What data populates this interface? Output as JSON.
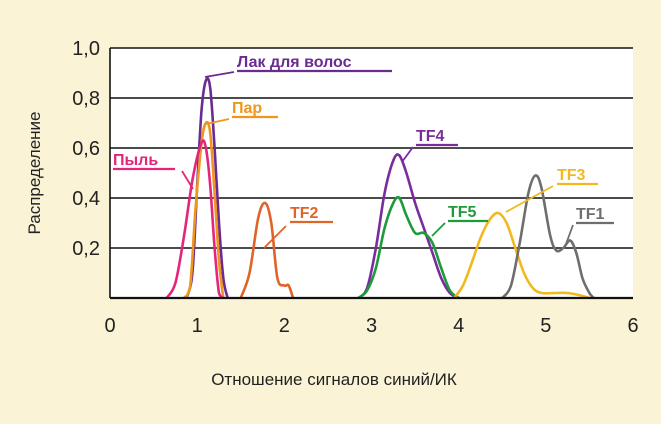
{
  "background_color": "#fbf3d6",
  "chart_data": {
    "type": "line",
    "title": "",
    "xlabel": "Отношение сигналов синий/ИК",
    "ylabel": "Распределение",
    "xlim": [
      0,
      6
    ],
    "ylim": [
      0,
      1.0
    ],
    "x_ticks": [
      "0",
      "1",
      "2",
      "3",
      "4",
      "5",
      "6"
    ],
    "y_ticks": [
      "0,2",
      "0,4",
      "0,6",
      "0,8",
      "1,0"
    ],
    "grid": "horizontal",
    "legend": "inline labels",
    "series": [
      {
        "name": "Лак для волос",
        "color": "#6a2c91",
        "points": [
          [
            0.85,
            0
          ],
          [
            0.9,
            0.02
          ],
          [
            0.95,
            0.12
          ],
          [
            1.0,
            0.45
          ],
          [
            1.05,
            0.75
          ],
          [
            1.1,
            0.87
          ],
          [
            1.15,
            0.84
          ],
          [
            1.2,
            0.6
          ],
          [
            1.25,
            0.3
          ],
          [
            1.3,
            0.08
          ],
          [
            1.35,
            0
          ]
        ]
      },
      {
        "name": "Пар",
        "color": "#f0961e",
        "points": [
          [
            0.85,
            0
          ],
          [
            0.92,
            0.05
          ],
          [
            0.98,
            0.35
          ],
          [
            1.05,
            0.62
          ],
          [
            1.1,
            0.7
          ],
          [
            1.15,
            0.66
          ],
          [
            1.2,
            0.42
          ],
          [
            1.25,
            0.15
          ],
          [
            1.3,
            0
          ]
        ]
      },
      {
        "name": "Пыль",
        "color": "#e3267a",
        "points": [
          [
            0.65,
            0
          ],
          [
            0.75,
            0.06
          ],
          [
            0.85,
            0.25
          ],
          [
            0.95,
            0.48
          ],
          [
            1.05,
            0.62
          ],
          [
            1.1,
            0.6
          ],
          [
            1.15,
            0.45
          ],
          [
            1.2,
            0.2
          ],
          [
            1.25,
            0.02
          ],
          [
            1.3,
            0
          ]
        ]
      },
      {
        "name": "TF2",
        "color": "#e0642a",
        "points": [
          [
            1.5,
            0
          ],
          [
            1.6,
            0.1
          ],
          [
            1.7,
            0.32
          ],
          [
            1.78,
            0.38
          ],
          [
            1.85,
            0.3
          ],
          [
            1.92,
            0.08
          ],
          [
            2.0,
            0.05
          ],
          [
            2.05,
            0.05
          ],
          [
            2.1,
            0
          ]
        ]
      },
      {
        "name": "TF4",
        "color": "#7a2c9c",
        "points": [
          [
            2.85,
            0
          ],
          [
            2.95,
            0.04
          ],
          [
            3.05,
            0.2
          ],
          [
            3.15,
            0.42
          ],
          [
            3.25,
            0.55
          ],
          [
            3.32,
            0.57
          ],
          [
            3.4,
            0.5
          ],
          [
            3.5,
            0.38
          ],
          [
            3.6,
            0.28
          ],
          [
            3.7,
            0.18
          ],
          [
            3.8,
            0.08
          ],
          [
            3.9,
            0.02
          ],
          [
            4.0,
            0
          ]
        ]
      },
      {
        "name": "TF5",
        "color": "#1e9a3c",
        "points": [
          [
            2.85,
            0
          ],
          [
            2.95,
            0.03
          ],
          [
            3.05,
            0.12
          ],
          [
            3.15,
            0.28
          ],
          [
            3.25,
            0.38
          ],
          [
            3.32,
            0.4
          ],
          [
            3.4,
            0.33
          ],
          [
            3.5,
            0.26
          ],
          [
            3.6,
            0.26
          ],
          [
            3.7,
            0.22
          ],
          [
            3.8,
            0.12
          ],
          [
            3.9,
            0.03
          ],
          [
            4.0,
            0
          ]
        ]
      },
      {
        "name": "TF3",
        "color": "#f2b91e",
        "points": [
          [
            3.95,
            0
          ],
          [
            4.05,
            0.05
          ],
          [
            4.15,
            0.14
          ],
          [
            4.25,
            0.24
          ],
          [
            4.35,
            0.31
          ],
          [
            4.45,
            0.34
          ],
          [
            4.55,
            0.3
          ],
          [
            4.65,
            0.2
          ],
          [
            4.75,
            0.1
          ],
          [
            4.85,
            0.04
          ],
          [
            4.95,
            0.02
          ],
          [
            5.1,
            0.02
          ],
          [
            5.25,
            0.02
          ],
          [
            5.4,
            0.01
          ],
          [
            5.5,
            0
          ]
        ]
      },
      {
        "name": "TF1",
        "color": "#6e6e6e",
        "points": [
          [
            4.5,
            0
          ],
          [
            4.6,
            0.05
          ],
          [
            4.7,
            0.22
          ],
          [
            4.8,
            0.42
          ],
          [
            4.88,
            0.49
          ],
          [
            4.95,
            0.44
          ],
          [
            5.05,
            0.25
          ],
          [
            5.12,
            0.19
          ],
          [
            5.2,
            0.2
          ],
          [
            5.28,
            0.23
          ],
          [
            5.35,
            0.18
          ],
          [
            5.42,
            0.08
          ],
          [
            5.5,
            0.02
          ],
          [
            5.55,
            0
          ]
        ]
      }
    ]
  }
}
